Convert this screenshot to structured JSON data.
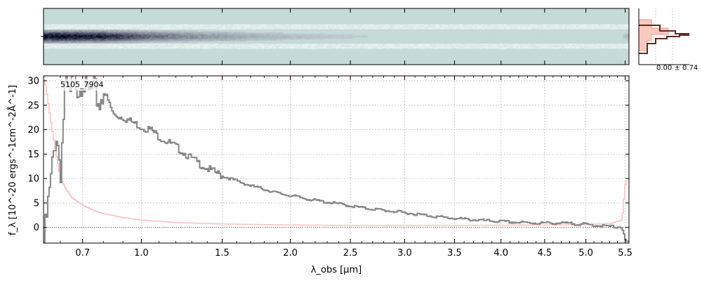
{
  "chart_data": [
    {
      "type": "heatmap",
      "panel": "2d-spectrum",
      "description_axis": "shares wavelength axis with 1D spectrum",
      "x": [
        0.53,
        0.6,
        0.7,
        0.8,
        0.9,
        1.0,
        1.2,
        1.4,
        1.6,
        1.8,
        2.0,
        2.4,
        2.8,
        3.2,
        3.6,
        4.0,
        4.4,
        4.8,
        5.2,
        5.45,
        5.5
      ],
      "trace_strength": [
        1.0,
        1.0,
        0.95,
        0.9,
        0.75,
        0.6,
        0.45,
        0.35,
        0.28,
        0.22,
        0.18,
        0.14,
        0.11,
        0.09,
        0.08,
        0.07,
        0.06,
        0.05,
        0.05,
        0.1,
        0.2
      ],
      "colors": {
        "background": "#c5dad9",
        "trace": "#0b0c2a"
      }
    },
    {
      "type": "line",
      "panel": "profile",
      "annotation": "0.00 ± 0.74",
      "colors": {
        "data": "#5a2e22",
        "model": "#f7c9bf"
      }
    },
    {
      "type": "line",
      "panel": "1d-spectrum",
      "title": "5105_7904",
      "xlabel": "λ_obs [μm]",
      "ylabel": "f_λ [10^-20 ergs^-1cm^-2Å^-1]",
      "xlim": [
        0.53,
        5.55
      ],
      "ylim": [
        -3.2,
        31
      ],
      "x_scale": "sqrt",
      "x_ticks": [
        0.7,
        1.0,
        1.5,
        2.0,
        2.5,
        3.0,
        3.5,
        4.0,
        4.5,
        5.0,
        5.5
      ],
      "x_tick_labels": [
        "0.7",
        "1.0",
        "1.5",
        "2.0",
        "2.5",
        "3.0",
        "3.5",
        "4.0",
        "4.5",
        "5.0",
        "5.5"
      ],
      "y_ticks": [
        0,
        5,
        10,
        15,
        20,
        25,
        30
      ],
      "y_tick_labels": [
        "0",
        "5",
        "10",
        "15",
        "20",
        "25",
        "30"
      ],
      "grid": true,
      "series": [
        {
          "role": "flux",
          "color": "#888888",
          "x": [
            0.53,
            0.56,
            0.58,
            0.6,
            0.62,
            0.64,
            0.66,
            0.68,
            0.7,
            0.72,
            0.75,
            0.78,
            0.8,
            0.85,
            0.9,
            0.95,
            1.0,
            1.05,
            1.1,
            1.15,
            1.2,
            1.3,
            1.4,
            1.5,
            1.6,
            1.7,
            1.8,
            1.9,
            2.0,
            2.2,
            2.4,
            2.6,
            2.8,
            3.0,
            3.2,
            3.4,
            3.6,
            3.8,
            4.0,
            4.2,
            4.4,
            4.6,
            4.8,
            5.0,
            5.2,
            5.4,
            5.45,
            5.5
          ],
          "y": [
            -3.0,
            10.0,
            20.0,
            12.0,
            30.0,
            26.0,
            31.0,
            29.0,
            31.0,
            27.0,
            28.0,
            25.5,
            28.0,
            23.0,
            22.5,
            21.5,
            20.5,
            20.0,
            18.5,
            17.5,
            16.5,
            14.0,
            12.0,
            10.5,
            9.5,
            8.5,
            7.8,
            7.0,
            6.5,
            5.5,
            4.8,
            4.0,
            3.5,
            3.0,
            2.5,
            2.0,
            1.7,
            1.4,
            1.2,
            1.0,
            0.9,
            0.9,
            0.8,
            0.6,
            0.3,
            0.1,
            0.1,
            -3.0
          ]
        },
        {
          "role": "error",
          "color": "#f6c4c0",
          "x": [
            0.53,
            0.56,
            0.58,
            0.6,
            0.62,
            0.65,
            0.7,
            0.75,
            0.8,
            0.9,
            1.0,
            1.2,
            1.5,
            2.0,
            2.5,
            3.0,
            3.5,
            4.0,
            4.5,
            5.0,
            5.3,
            5.45,
            5.5
          ],
          "y": [
            31.0,
            21.0,
            15.0,
            10.0,
            8.0,
            6.0,
            4.5,
            3.5,
            2.8,
            2.0,
            1.5,
            1.0,
            0.7,
            0.5,
            0.4,
            0.4,
            0.4,
            0.45,
            0.5,
            0.6,
            0.8,
            1.5,
            9.5
          ]
        }
      ]
    }
  ]
}
